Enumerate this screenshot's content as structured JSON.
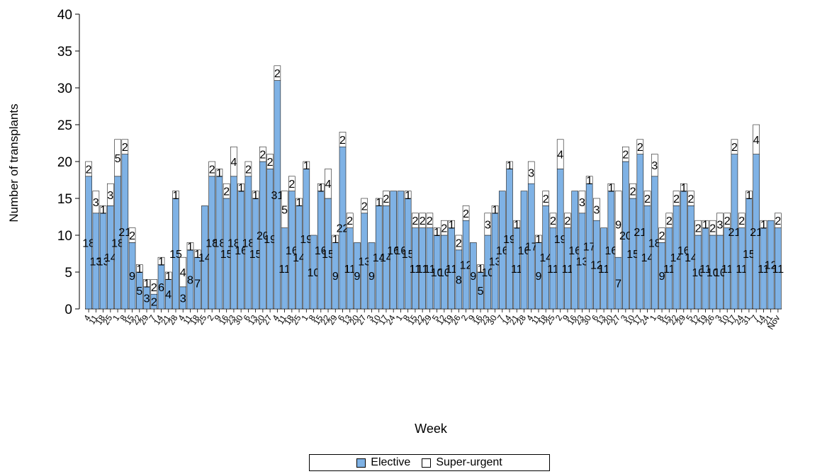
{
  "chart_data": {
    "type": "bar",
    "stacked": true,
    "title": "",
    "xlabel": "Week",
    "ylabel": "Number of transplants",
    "ylim": [
      0,
      40
    ],
    "yticks": [
      0,
      5,
      10,
      15,
      20,
      25,
      30,
      35,
      40
    ],
    "grid": false,
    "legend_position": "bottom",
    "colors": {
      "Elective": "#7fb2e5",
      "Super-urgent": "#ffffff"
    },
    "series": [
      {
        "name": "Elective",
        "values": [
          18,
          13,
          13,
          14,
          18,
          21,
          9,
          5,
          3,
          2,
          6,
          4,
          15,
          3,
          8,
          7,
          14,
          18,
          18,
          15,
          18,
          16,
          18,
          15,
          20,
          19,
          31,
          11,
          16,
          14,
          19,
          10,
          16,
          15,
          9,
          22,
          11,
          9,
          13,
          9,
          14,
          14,
          16,
          16,
          15,
          11,
          11,
          11,
          10,
          10,
          11,
          8,
          12,
          9,
          5,
          10,
          13,
          16,
          19,
          11,
          16,
          17,
          9,
          14,
          11,
          19,
          11,
          16,
          13,
          17,
          12,
          11,
          16,
          7,
          20,
          15,
          21,
          14,
          18,
          9,
          11,
          14,
          16,
          14,
          10,
          11,
          10,
          10,
          11,
          21,
          11,
          15,
          21,
          11,
          12,
          11
        ]
      },
      {
        "name": "Super-urgent",
        "values": [
          2,
          3,
          1,
          3,
          5,
          2,
          2,
          1,
          1,
          2,
          1,
          1,
          1,
          4,
          1,
          1,
          0,
          2,
          1,
          2,
          4,
          1,
          2,
          1,
          2,
          2,
          2,
          5,
          2,
          1,
          1,
          0,
          1,
          4,
          1,
          2,
          2,
          0,
          2,
          0,
          1,
          2,
          0,
          0,
          1,
          2,
          2,
          2,
          1,
          2,
          1,
          2,
          2,
          0,
          1,
          3,
          1,
          0,
          1,
          1,
          0,
          3,
          1,
          2,
          2,
          4,
          2,
          0,
          3,
          1,
          3,
          0,
          1,
          9,
          2,
          2,
          2,
          2,
          3,
          2,
          2,
          2,
          1,
          2,
          2,
          1,
          2,
          3,
          2,
          2,
          2,
          1,
          4,
          1,
          0,
          2
        ]
      }
    ],
    "x_tick_labels": [
      "4",
      "11",
      "18",
      "25",
      "1",
      "8",
      "15",
      "22",
      "29",
      "7",
      "14",
      "21",
      "28",
      "4",
      "11",
      "18",
      "25",
      "2",
      "9",
      "16",
      "23",
      "30",
      "6",
      "13",
      "20",
      "27",
      "4",
      "11",
      "18",
      "25",
      "1",
      "8",
      "15",
      "22",
      "29",
      "6",
      "13",
      "20",
      "27",
      "3",
      "10",
      "17",
      "24",
      "1",
      "8",
      "15",
      "22",
      "29",
      "5",
      "12",
      "19",
      "26",
      "2",
      "9",
      "16",
      "23",
      "30",
      "7",
      "14",
      "21",
      "28",
      "4",
      "11",
      "18",
      "25",
      "2",
      "9",
      "16",
      "23",
      "30",
      "6",
      "13",
      "20",
      "27",
      "3",
      "10",
      "17",
      "24",
      "1",
      "8",
      "15",
      "22",
      "29",
      "5",
      "12",
      "19",
      "26",
      "3",
      "10",
      "17",
      "24",
      "31",
      "7",
      "14",
      "21",
      "Nov"
    ],
    "legend": {
      "items": [
        "Elective",
        "Super-urgent"
      ]
    }
  }
}
